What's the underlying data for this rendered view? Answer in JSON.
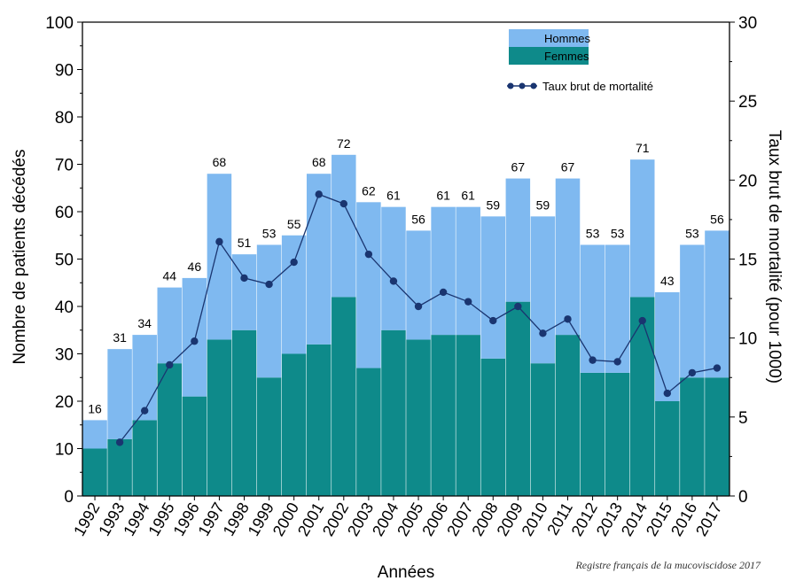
{
  "chart_data": {
    "type": "bar",
    "title": "",
    "xlabel": "Années",
    "ylabel": "Nombre de patients décédés",
    "y2label": "Taux brut de mortalité (pour 1000)",
    "ylim": [
      0,
      100
    ],
    "y2lim": [
      0,
      30
    ],
    "yticks": [
      "0",
      "10",
      "20",
      "30",
      "40",
      "50",
      "60",
      "70",
      "80",
      "90",
      "100"
    ],
    "y2ticks": [
      "0",
      "5",
      "10",
      "15",
      "20",
      "25",
      "30"
    ],
    "stacked": true,
    "categories": [
      "1992",
      "1993",
      "1994",
      "1995",
      "1996",
      "1997",
      "1998",
      "1999",
      "2000",
      "2001",
      "2002",
      "2003",
      "2004",
      "2005",
      "2006",
      "2007",
      "2008",
      "2009",
      "2010",
      "2011",
      "2012",
      "2013",
      "2014",
      "2015",
      "2016",
      "2017"
    ],
    "totals": [
      "16",
      "31",
      "34",
      "44",
      "46",
      "68",
      "51",
      "53",
      "55",
      "68",
      "72",
      "62",
      "61",
      "56",
      "61",
      "61",
      "59",
      "67",
      "59",
      "67",
      "53",
      "53",
      "71",
      "43",
      "53",
      "56"
    ],
    "series": [
      {
        "name": "Femmes",
        "kind": "bar",
        "color": "#0e8a8a",
        "values": [
          10,
          12,
          16,
          28,
          21,
          33,
          35,
          25,
          30,
          32,
          42,
          27,
          35,
          33,
          34,
          34,
          29,
          41,
          28,
          34,
          26,
          26,
          42,
          20,
          25,
          25
        ]
      },
      {
        "name": "Hommes",
        "kind": "bar",
        "color": "#7fb9f0",
        "values": [
          6,
          19,
          18,
          16,
          25,
          35,
          16,
          28,
          25,
          36,
          30,
          35,
          26,
          23,
          27,
          27,
          30,
          26,
          31,
          33,
          27,
          27,
          29,
          23,
          28,
          31
        ]
      },
      {
        "name": "Taux brut de mortalité",
        "kind": "line",
        "axis": "right",
        "color": "#1a3570",
        "values": [
          null,
          3.4,
          5.4,
          8.3,
          9.8,
          16.1,
          13.8,
          13.4,
          14.8,
          19.1,
          18.5,
          15.3,
          13.6,
          12.0,
          12.9,
          12.3,
          11.1,
          12.0,
          10.3,
          11.2,
          8.6,
          8.5,
          11.1,
          6.5,
          7.8,
          8.1
        ]
      }
    ],
    "legend": {
      "position": "top-right",
      "items": [
        "Hommes",
        "Femmes",
        "Taux brut de mortalité"
      ]
    },
    "grid": false
  },
  "source": "Registre français de la mucoviscidose 2017"
}
